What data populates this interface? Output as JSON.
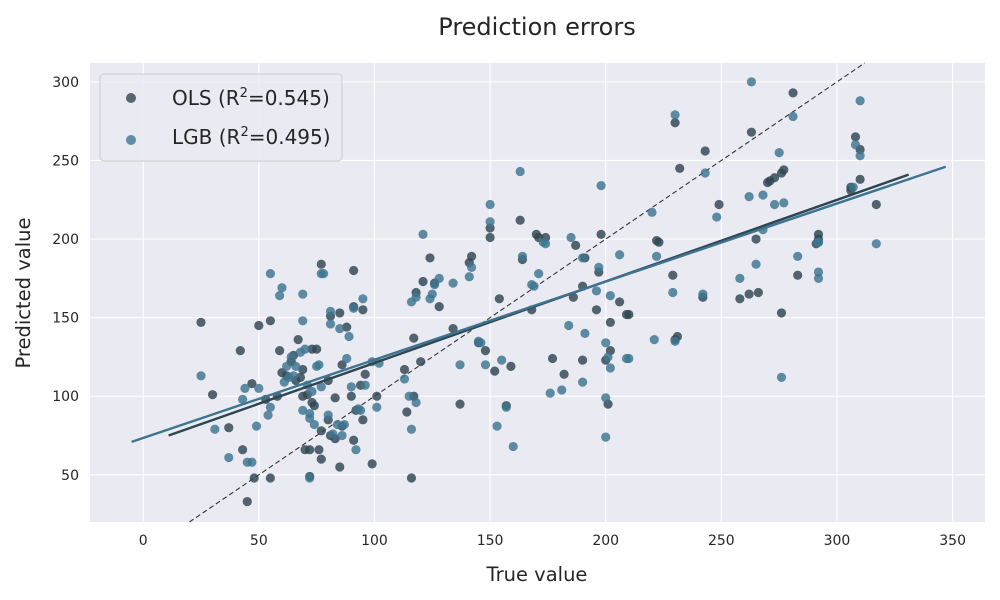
{
  "chart_data": {
    "type": "scatter",
    "title": "Prediction errors",
    "xlabel": "True value",
    "ylabel": "Predicted value",
    "xlim": [
      -23.0,
      364.0
    ],
    "ylim": [
      20.0,
      312.0
    ],
    "xticks": [
      0,
      50,
      100,
      150,
      200,
      250,
      300,
      350
    ],
    "yticks": [
      50,
      100,
      150,
      200,
      250,
      300
    ],
    "grid": true,
    "legend_position": "top-left",
    "identity_line": {
      "style": "dashed",
      "color": "#333333"
    },
    "series": [
      {
        "name": "OLS",
        "r2": "0.545",
        "color": "#2f4550",
        "fit_line": {
          "x": [
            11,
            331
          ],
          "y": [
            75,
            241
          ]
        },
        "points": [
          [
            25,
            147
          ],
          [
            30,
            101
          ],
          [
            37,
            80
          ],
          [
            42,
            129
          ],
          [
            43,
            66
          ],
          [
            45,
            33
          ],
          [
            47,
            108
          ],
          [
            48,
            48
          ],
          [
            50,
            145
          ],
          [
            53,
            98
          ],
          [
            55,
            48
          ],
          [
            55,
            148
          ],
          [
            58,
            100
          ],
          [
            59,
            129
          ],
          [
            60,
            115
          ],
          [
            62,
            113
          ],
          [
            64,
            122
          ],
          [
            65,
            126
          ],
          [
            66,
            110
          ],
          [
            67,
            136
          ],
          [
            68,
            112
          ],
          [
            69,
            117
          ],
          [
            69,
            100
          ],
          [
            70,
            66
          ],
          [
            71,
            101
          ],
          [
            72,
            49
          ],
          [
            72,
            66
          ],
          [
            73,
            130
          ],
          [
            73,
            96
          ],
          [
            74,
            94
          ],
          [
            75,
            130
          ],
          [
            76,
            66
          ],
          [
            77,
            60
          ],
          [
            77,
            78
          ],
          [
            77,
            184
          ],
          [
            80,
            85
          ],
          [
            80,
            110
          ],
          [
            81,
            75
          ],
          [
            81,
            151
          ],
          [
            83,
            99
          ],
          [
            83,
            73
          ],
          [
            85,
            55
          ],
          [
            85,
            153
          ],
          [
            86,
            120
          ],
          [
            86,
            81
          ],
          [
            88,
            144
          ],
          [
            90,
            100
          ],
          [
            91,
            180
          ],
          [
            91,
            72
          ],
          [
            91,
            157
          ],
          [
            92,
            91
          ],
          [
            94,
            107
          ],
          [
            95,
            85
          ],
          [
            95,
            155
          ],
          [
            96,
            114
          ],
          [
            99,
            57
          ],
          [
            101,
            100
          ],
          [
            113,
            117
          ],
          [
            114,
            90
          ],
          [
            116,
            48
          ],
          [
            117,
            137
          ],
          [
            117,
            100
          ],
          [
            118,
            166
          ],
          [
            120,
            122
          ],
          [
            121,
            173
          ],
          [
            124,
            188
          ],
          [
            126,
            172
          ],
          [
            128,
            157
          ],
          [
            134,
            143
          ],
          [
            137,
            95
          ],
          [
            141,
            185
          ],
          [
            142,
            189
          ],
          [
            145,
            134
          ],
          [
            148,
            129
          ],
          [
            150,
            201
          ],
          [
            150,
            207
          ],
          [
            152,
            116
          ],
          [
            154,
            162
          ],
          [
            157,
            94
          ],
          [
            159,
            119
          ],
          [
            163,
            212
          ],
          [
            164,
            187
          ],
          [
            168,
            155
          ],
          [
            170,
            203
          ],
          [
            171,
            201
          ],
          [
            174,
            201
          ],
          [
            177,
            124
          ],
          [
            182,
            114
          ],
          [
            186,
            163
          ],
          [
            187,
            196
          ],
          [
            190,
            170
          ],
          [
            190,
            123
          ],
          [
            191,
            188
          ],
          [
            196,
            155
          ],
          [
            197,
            179
          ],
          [
            198,
            203
          ],
          [
            200,
            123
          ],
          [
            201,
            95
          ],
          [
            202,
            147
          ],
          [
            202,
            129
          ],
          [
            206,
            160
          ],
          [
            209,
            152
          ],
          [
            210,
            152
          ],
          [
            222,
            199
          ],
          [
            223,
            198
          ],
          [
            229,
            177
          ],
          [
            230,
            136
          ],
          [
            230,
            274
          ],
          [
            231,
            138
          ],
          [
            232,
            245
          ],
          [
            242,
            163
          ],
          [
            243,
            256
          ],
          [
            249,
            222
          ],
          [
            258,
            162
          ],
          [
            262,
            165
          ],
          [
            263,
            268
          ],
          [
            265,
            200
          ],
          [
            266,
            166
          ],
          [
            270,
            236
          ],
          [
            271,
            237
          ],
          [
            273,
            239
          ],
          [
            276,
            242
          ],
          [
            276,
            153
          ],
          [
            277,
            244
          ],
          [
            281,
            293
          ],
          [
            283,
            177
          ],
          [
            291,
            197
          ],
          [
            292,
            203
          ],
          [
            292,
            200
          ],
          [
            306,
            233
          ],
          [
            306,
            231
          ],
          [
            308,
            265
          ],
          [
            310,
            257
          ],
          [
            310,
            238
          ],
          [
            317,
            222
          ]
        ]
      },
      {
        "name": "LGB",
        "r2": "0.495",
        "color": "#3d7590",
        "fit_line": {
          "x": [
            -5,
            347
          ],
          "y": [
            71,
            246
          ]
        },
        "points": [
          [
            25,
            113
          ],
          [
            31,
            79
          ],
          [
            37,
            61
          ],
          [
            43,
            98
          ],
          [
            44,
            105
          ],
          [
            45,
            58
          ],
          [
            47,
            58
          ],
          [
            49,
            81
          ],
          [
            50,
            105
          ],
          [
            54,
            88
          ],
          [
            55,
            93
          ],
          [
            55,
            178
          ],
          [
            59,
            164
          ],
          [
            60,
            169
          ],
          [
            61,
            109
          ],
          [
            62,
            119
          ],
          [
            63,
            112
          ],
          [
            64,
            125
          ],
          [
            65,
            113
          ],
          [
            66,
            119
          ],
          [
            68,
            128
          ],
          [
            69,
            165
          ],
          [
            69,
            148
          ],
          [
            69,
            91
          ],
          [
            70,
            130
          ],
          [
            71,
            107
          ],
          [
            72,
            48
          ],
          [
            72,
            86
          ],
          [
            72,
            89
          ],
          [
            73,
            103
          ],
          [
            74,
            82
          ],
          [
            75,
            119
          ],
          [
            76,
            120
          ],
          [
            77,
            106
          ],
          [
            77,
            178
          ],
          [
            78,
            178
          ],
          [
            80,
            88
          ],
          [
            81,
            154
          ],
          [
            81,
            146
          ],
          [
            82,
            76
          ],
          [
            84,
            82
          ],
          [
            85,
            143
          ],
          [
            86,
            75
          ],
          [
            87,
            82
          ],
          [
            88,
            124
          ],
          [
            89,
            138
          ],
          [
            90,
            106
          ],
          [
            91,
            156
          ],
          [
            92,
            66
          ],
          [
            93,
            92
          ],
          [
            94,
            91
          ],
          [
            95,
            162
          ],
          [
            96,
            107
          ],
          [
            99,
            122
          ],
          [
            101,
            93
          ],
          [
            102,
            121
          ],
          [
            113,
            111
          ],
          [
            115,
            100
          ],
          [
            116,
            79
          ],
          [
            116,
            160
          ],
          [
            118,
            96
          ],
          [
            118,
            163
          ],
          [
            121,
            203
          ],
          [
            124,
            162
          ],
          [
            125,
            165
          ],
          [
            126,
            171
          ],
          [
            128,
            175
          ],
          [
            134,
            172
          ],
          [
            137,
            120
          ],
          [
            141,
            176
          ],
          [
            142,
            182
          ],
          [
            145,
            135
          ],
          [
            146,
            134
          ],
          [
            148,
            120
          ],
          [
            150,
            222
          ],
          [
            150,
            211
          ],
          [
            153,
            81
          ],
          [
            155,
            123
          ],
          [
            157,
            93
          ],
          [
            160,
            68
          ],
          [
            163,
            243
          ],
          [
            164,
            189
          ],
          [
            168,
            171
          ],
          [
            169,
            170
          ],
          [
            171,
            178
          ],
          [
            173,
            198
          ],
          [
            174,
            197
          ],
          [
            176,
            102
          ],
          [
            181,
            104
          ],
          [
            184,
            145
          ],
          [
            185,
            201
          ],
          [
            190,
            188
          ],
          [
            190,
            109
          ],
          [
            191,
            140
          ],
          [
            196,
            167
          ],
          [
            197,
            182
          ],
          [
            198,
            234
          ],
          [
            200,
            99
          ],
          [
            200,
            74
          ],
          [
            200,
            134
          ],
          [
            201,
            125
          ],
          [
            202,
            118
          ],
          [
            202,
            164
          ],
          [
            206,
            190
          ],
          [
            209,
            124
          ],
          [
            210,
            124
          ],
          [
            220,
            217
          ],
          [
            221,
            136
          ],
          [
            222,
            189
          ],
          [
            229,
            166
          ],
          [
            230,
            279
          ],
          [
            230,
            135
          ],
          [
            242,
            165
          ],
          [
            243,
            242
          ],
          [
            248,
            214
          ],
          [
            258,
            175
          ],
          [
            262,
            227
          ],
          [
            263,
            300
          ],
          [
            265,
            184
          ],
          [
            268,
            206
          ],
          [
            268,
            228
          ],
          [
            273,
            222
          ],
          [
            275,
            255
          ],
          [
            276,
            112
          ],
          [
            277,
            223
          ],
          [
            281,
            278
          ],
          [
            283,
            189
          ],
          [
            292,
            179
          ],
          [
            292,
            175
          ],
          [
            292,
            198
          ],
          [
            292,
            198
          ],
          [
            307,
            233
          ],
          [
            308,
            260
          ],
          [
            310,
            253
          ],
          [
            310,
            288
          ],
          [
            317,
            197
          ]
        ]
      }
    ]
  }
}
